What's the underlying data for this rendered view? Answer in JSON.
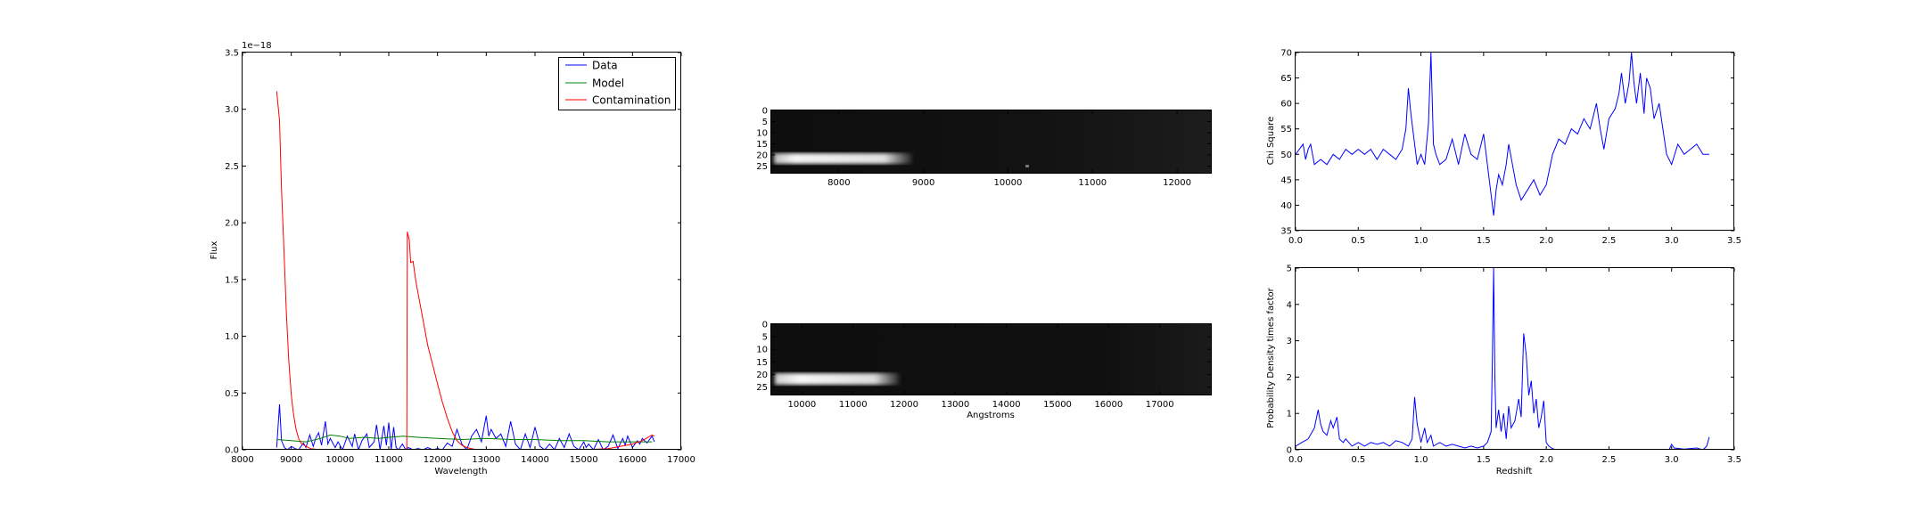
{
  "chart_data": [
    {
      "id": "spectrum",
      "type": "line",
      "title": "",
      "xlabel": "Wavelength",
      "ylabel": "Flux",
      "offset_text": "1e−18",
      "xlim": [
        8000,
        17000
      ],
      "ylim": [
        0,
        3.5
      ],
      "xticks": [
        8000,
        9000,
        10000,
        11000,
        12000,
        13000,
        14000,
        15000,
        16000,
        17000
      ],
      "yticks": [
        0.0,
        0.5,
        1.0,
        1.5,
        2.0,
        2.5,
        3.0,
        3.5
      ],
      "ytick_labels": [
        "0.0",
        "0.5",
        "1.0",
        "1.5",
        "2.0",
        "2.5",
        "3.0",
        "3.5"
      ],
      "legend_loc": "top-right",
      "series": [
        {
          "name": "Data",
          "color": "#0000ff",
          "x": [
            8700,
            8760,
            8800,
            8860,
            8920,
            9000,
            9080,
            9150,
            9250,
            9300,
            9380,
            9450,
            9500,
            9560,
            9620,
            9700,
            9750,
            9800,
            9900,
            9960,
            10050,
            10150,
            10250,
            10300,
            10380,
            10450,
            10550,
            10600,
            10700,
            10750,
            10820,
            10900,
            10950,
            11000,
            11050,
            11100,
            11150,
            11200,
            11280,
            11350,
            11400,
            11500,
            11600,
            11700,
            11800,
            11900,
            12000,
            12100,
            12200,
            12300,
            12400,
            12500,
            12600,
            12700,
            12800,
            12900,
            13000,
            13050,
            13100,
            13200,
            13300,
            13400,
            13500,
            13600,
            13700,
            13800,
            13900,
            14000,
            14100,
            14200,
            14300,
            14400,
            14500,
            14600,
            14700,
            14800,
            14900,
            15000,
            15050,
            15100,
            15200,
            15300,
            15400,
            15500,
            15600,
            15700,
            15800,
            15850,
            15900,
            16000,
            16100,
            16150,
            16200,
            16300,
            16400,
            16450
          ],
          "y": [
            0.02,
            0.4,
            0.08,
            0.02,
            0.0,
            0.03,
            0.01,
            0.0,
            0.06,
            0.02,
            0.13,
            0.03,
            0.1,
            0.15,
            0.04,
            0.25,
            0.05,
            0.1,
            0.02,
            0.07,
            0.0,
            0.12,
            0.03,
            0.14,
            0.0,
            0.08,
            0.14,
            0.02,
            0.07,
            0.22,
            0.0,
            0.21,
            0.04,
            0.24,
            0.0,
            0.2,
            0.02,
            0.0,
            0.05,
            0.0,
            0.02,
            0.0,
            0.01,
            0.0,
            0.02,
            0.0,
            0.01,
            0.0,
            0.06,
            0.03,
            0.18,
            0.05,
            0.0,
            0.12,
            0.18,
            0.07,
            0.3,
            0.12,
            0.18,
            0.1,
            0.14,
            0.03,
            0.25,
            0.05,
            0.0,
            0.14,
            0.02,
            0.2,
            0.03,
            0.0,
            0.05,
            0.0,
            0.1,
            0.02,
            0.14,
            0.03,
            0.0,
            0.07,
            0.02,
            0.05,
            0.0,
            0.09,
            0.0,
            0.03,
            0.13,
            0.01,
            0.1,
            0.04,
            0.12,
            0.02,
            0.08,
            0.05,
            0.1,
            0.06,
            0.12,
            0.07
          ]
        },
        {
          "name": "Model",
          "color": "#008000",
          "x": [
            8700,
            9000,
            9300,
            9600,
            9800,
            10000,
            10200,
            10500,
            10800,
            11000,
            11300,
            11600,
            12000,
            12500,
            13000,
            13500,
            14000,
            14500,
            15000,
            15500,
            16000,
            16400
          ],
          "y": [
            0.09,
            0.08,
            0.07,
            0.1,
            0.13,
            0.12,
            0.1,
            0.11,
            0.1,
            0.11,
            0.12,
            0.11,
            0.1,
            0.09,
            0.1,
            0.09,
            0.09,
            0.08,
            0.08,
            0.07,
            0.07,
            0.07
          ]
        },
        {
          "name": "Contamination",
          "color": "#ff0000",
          "x": [
            8700,
            8760,
            8800,
            8850,
            8900,
            8950,
            9000,
            9050,
            9100,
            9150,
            9200,
            9300,
            9400,
            9600,
            10000,
            10500,
            11000,
            11300,
            11370,
            11380,
            11420,
            11450,
            11500,
            11550,
            11600,
            11700,
            11800,
            11900,
            12000,
            12100,
            12200,
            12300,
            12400,
            12500,
            12600,
            12800,
            13000,
            13500,
            14000,
            15000,
            15500,
            16000,
            16200,
            16400,
            16450
          ],
          "y": [
            3.16,
            2.9,
            2.3,
            1.75,
            1.2,
            0.78,
            0.48,
            0.3,
            0.18,
            0.1,
            0.06,
            0.03,
            0.01,
            0.0,
            0.0,
            0.0,
            0.0,
            0.0,
            0.01,
            1.92,
            1.85,
            1.65,
            1.66,
            1.5,
            1.38,
            1.15,
            0.92,
            0.75,
            0.58,
            0.42,
            0.28,
            0.16,
            0.08,
            0.04,
            0.02,
            0.0,
            0.0,
            0.0,
            0.0,
            0.0,
            0.01,
            0.05,
            0.08,
            0.13,
            0.12
          ]
        }
      ]
    },
    {
      "id": "stamp-top",
      "type": "heatmap",
      "title": "",
      "xlabel": "",
      "ylabel": "",
      "xlim": [
        7200,
        12400
      ],
      "ylim": [
        28,
        0
      ],
      "xticks": [
        8000,
        9000,
        10000,
        11000,
        12000
      ],
      "yticks": [
        0,
        5,
        10,
        15,
        20,
        25
      ],
      "trace_row": 22,
      "trace_end": 8900,
      "colormap": "gray"
    },
    {
      "id": "stamp-bottom",
      "type": "heatmap",
      "title": "",
      "xlabel": "Angstroms",
      "ylabel": "",
      "xlim": [
        9400,
        18000
      ],
      "ylim": [
        28,
        0
      ],
      "xticks": [
        10000,
        11000,
        12000,
        13000,
        14000,
        15000,
        16000,
        17000
      ],
      "yticks": [
        0,
        5,
        10,
        15,
        20,
        25
      ],
      "trace_row": 22,
      "trace_end": 11900,
      "colormap": "gray"
    },
    {
      "id": "chisq",
      "type": "line",
      "title": "",
      "xlabel": "",
      "ylabel": "Chi Square",
      "xlim": [
        0.0,
        3.5
      ],
      "ylim": [
        35,
        70
      ],
      "xticks": [
        0.0,
        0.5,
        1.0,
        1.5,
        2.0,
        2.5,
        3.0,
        3.5
      ],
      "xtick_labels": [
        "0.0",
        "0.5",
        "1.0",
        "1.5",
        "2.0",
        "2.5",
        "3.0",
        "3.5"
      ],
      "yticks": [
        35,
        40,
        45,
        50,
        55,
        60,
        65,
        70
      ],
      "series": [
        {
          "color": "#0000ff",
          "x": [
            0.0,
            0.03,
            0.06,
            0.08,
            0.1,
            0.12,
            0.15,
            0.2,
            0.25,
            0.3,
            0.35,
            0.4,
            0.45,
            0.5,
            0.55,
            0.6,
            0.65,
            0.7,
            0.75,
            0.8,
            0.85,
            0.88,
            0.9,
            0.92,
            0.95,
            0.97,
            1.0,
            1.03,
            1.06,
            1.08,
            1.1,
            1.12,
            1.15,
            1.2,
            1.25,
            1.3,
            1.35,
            1.4,
            1.45,
            1.5,
            1.53,
            1.56,
            1.58,
            1.6,
            1.62,
            1.65,
            1.68,
            1.7,
            1.73,
            1.76,
            1.8,
            1.85,
            1.9,
            1.95,
            2.0,
            2.05,
            2.1,
            2.15,
            2.2,
            2.25,
            2.3,
            2.35,
            2.4,
            2.43,
            2.46,
            2.5,
            2.55,
            2.58,
            2.6,
            2.63,
            2.66,
            2.68,
            2.7,
            2.72,
            2.75,
            2.78,
            2.8,
            2.83,
            2.86,
            2.9,
            2.93,
            2.96,
            3.0,
            3.05,
            3.1,
            3.15,
            3.2,
            3.25,
            3.3
          ],
          "y": [
            50,
            51,
            52,
            49,
            51,
            52,
            48,
            49,
            48,
            50,
            49,
            51,
            50,
            51,
            50,
            51,
            49,
            51,
            50,
            49,
            51,
            55,
            63,
            58,
            52,
            48,
            50,
            48,
            56,
            70,
            52,
            50,
            48,
            49,
            53,
            48,
            54,
            50,
            49,
            54,
            48,
            42,
            38,
            43,
            46,
            44,
            48,
            52,
            48,
            44,
            41,
            43,
            45,
            42,
            44,
            50,
            53,
            52,
            55,
            54,
            57,
            55,
            60,
            55,
            51,
            57,
            59,
            62,
            66,
            60,
            64,
            70,
            64,
            60,
            66,
            58,
            65,
            63,
            57,
            60,
            55,
            50,
            48,
            52,
            50,
            51,
            52,
            50,
            50
          ]
        }
      ]
    },
    {
      "id": "pdf",
      "type": "line",
      "title": "",
      "xlabel": "Redshift",
      "ylabel": "Probability Density times factor",
      "xlim": [
        0.0,
        3.5
      ],
      "ylim": [
        0,
        5
      ],
      "xticks": [
        0.0,
        0.5,
        1.0,
        1.5,
        2.0,
        2.5,
        3.0,
        3.5
      ],
      "xtick_labels": [
        "0.0",
        "0.5",
        "1.0",
        "1.5",
        "2.0",
        "2.5",
        "3.0",
        "3.5"
      ],
      "yticks": [
        0,
        1,
        2,
        3,
        4,
        5
      ],
      "series": [
        {
          "color": "#0000ff",
          "x": [
            0.0,
            0.05,
            0.1,
            0.15,
            0.18,
            0.2,
            0.22,
            0.25,
            0.28,
            0.3,
            0.33,
            0.35,
            0.38,
            0.4,
            0.45,
            0.5,
            0.55,
            0.6,
            0.65,
            0.7,
            0.75,
            0.8,
            0.85,
            0.9,
            0.93,
            0.95,
            0.97,
            1.0,
            1.03,
            1.05,
            1.08,
            1.1,
            1.15,
            1.2,
            1.25,
            1.3,
            1.35,
            1.4,
            1.45,
            1.5,
            1.53,
            1.56,
            1.57,
            1.58,
            1.59,
            1.6,
            1.62,
            1.64,
            1.66,
            1.68,
            1.7,
            1.72,
            1.75,
            1.78,
            1.8,
            1.82,
            1.84,
            1.86,
            1.88,
            1.9,
            1.92,
            1.94,
            1.96,
            1.98,
            2.0,
            2.02,
            2.04,
            2.06,
            2.1,
            2.2,
            2.3,
            2.4,
            2.5,
            2.6,
            2.7,
            2.8,
            2.9,
            2.98,
            3.0,
            3.02,
            3.1,
            3.2,
            3.25,
            3.28,
            3.3
          ],
          "y": [
            0.1,
            0.2,
            0.3,
            0.6,
            1.1,
            0.7,
            0.5,
            0.4,
            0.8,
            0.6,
            0.9,
            0.3,
            0.2,
            0.3,
            0.1,
            0.2,
            0.1,
            0.2,
            0.15,
            0.2,
            0.1,
            0.25,
            0.2,
            0.1,
            0.3,
            1.45,
            0.7,
            0.2,
            0.6,
            0.2,
            0.4,
            0.1,
            0.2,
            0.1,
            0.15,
            0.1,
            0.05,
            0.1,
            0.05,
            0.1,
            0.2,
            0.5,
            2.5,
            5.0,
            2.0,
            0.6,
            1.1,
            0.5,
            1.0,
            0.3,
            1.2,
            0.6,
            0.8,
            1.4,
            0.9,
            3.2,
            2.6,
            1.5,
            1.9,
            1.0,
            1.4,
            0.6,
            0.9,
            1.35,
            0.2,
            0.1,
            0.05,
            0.02,
            0.0,
            0.0,
            0.0,
            0.0,
            0.0,
            0.0,
            0.0,
            0.0,
            0.0,
            0.0,
            0.15,
            0.05,
            0.02,
            0.05,
            0.0,
            0.1,
            0.35
          ]
        }
      ]
    }
  ]
}
